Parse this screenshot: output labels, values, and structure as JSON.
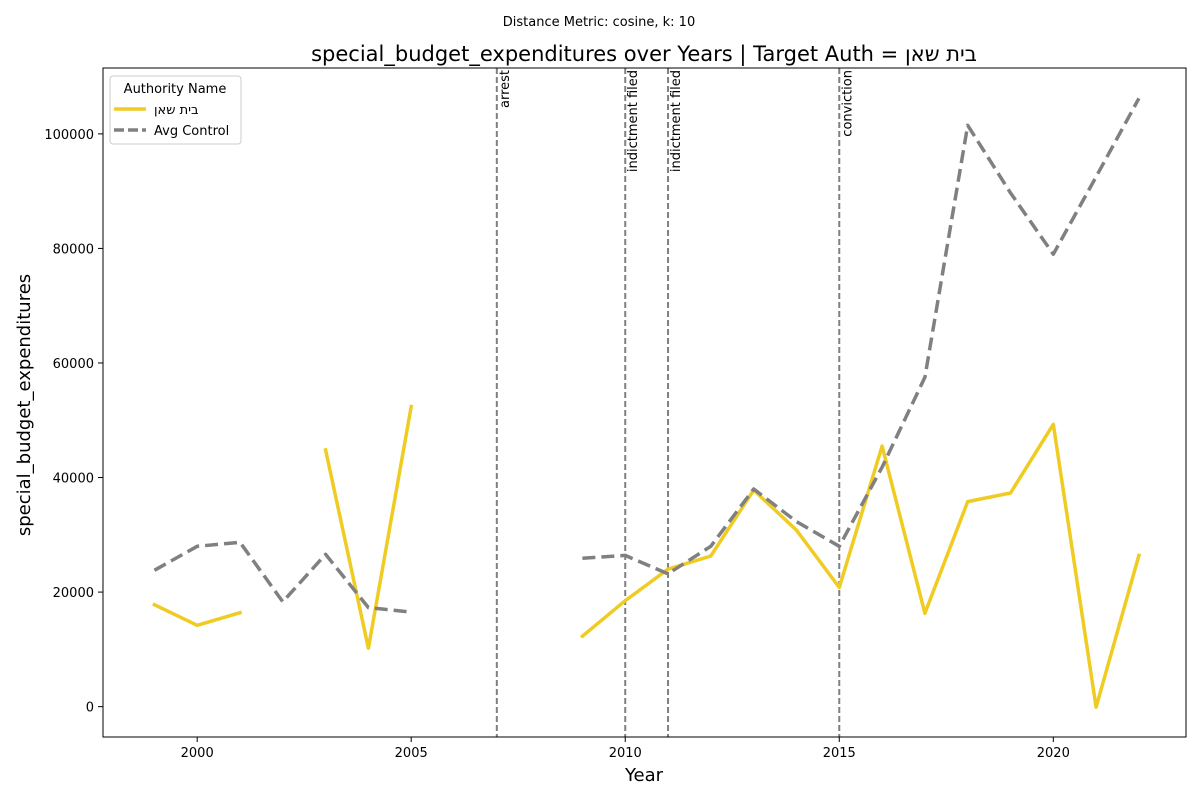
{
  "chart_data": {
    "type": "line",
    "subtitle": "Distance Metric: cosine, k: 10",
    "title": "special_budget_expenditures over Years | Target Auth = בית שאן",
    "xlabel": "Year",
    "ylabel": "special_budget_expenditures",
    "xlim": [
      1997.8,
      2023.1
    ],
    "ylim": [
      -5300,
      111500
    ],
    "x_ticks": [
      2000,
      2005,
      2010,
      2015,
      2020
    ],
    "y_ticks": [
      0,
      20000,
      40000,
      60000,
      80000,
      100000
    ],
    "grid": false,
    "legend": {
      "title": "Authority Name",
      "placement": "top-left",
      "entries": [
        "בית שאן",
        "Avg Control"
      ]
    },
    "series": [
      {
        "name": "בית שאן",
        "color": "#f0cc22",
        "style": "solid",
        "segments": [
          [
            [
              1999,
              17800
            ],
            [
              2000,
              14200
            ],
            [
              2001,
              16400
            ]
          ],
          [
            [
              2003,
              44800
            ],
            [
              2004,
              10200
            ],
            [
              2005,
              52400
            ]
          ],
          [
            [
              2009,
              12300
            ],
            [
              2010,
              18500
            ],
            [
              2011,
              24000
            ],
            [
              2012,
              26300
            ],
            [
              2013,
              37800
            ],
            [
              2014,
              30800
            ],
            [
              2015,
              20800
            ],
            [
              2016,
              45500
            ],
            [
              2017,
              16300
            ],
            [
              2018,
              35800
            ],
            [
              2019,
              37300
            ],
            [
              2020,
              49300
            ],
            [
              2021,
              -100
            ],
            [
              2022,
              26400
            ]
          ]
        ]
      },
      {
        "name": "Avg Control",
        "color": "#808080",
        "style": "dashed",
        "segments": [
          [
            [
              1999,
              23800
            ],
            [
              2000,
              28000
            ],
            [
              2001,
              28700
            ],
            [
              2002,
              18300
            ],
            [
              2003,
              26600
            ],
            [
              2004,
              17300
            ],
            [
              2005,
              16500
            ]
          ],
          [
            [
              2009,
              25900
            ],
            [
              2010,
              26400
            ],
            [
              2011,
              23200
            ],
            [
              2012,
              28000
            ],
            [
              2013,
              38000
            ],
            [
              2014,
              32300
            ],
            [
              2015,
              28000
            ],
            [
              2016,
              41800
            ],
            [
              2017,
              57500
            ],
            [
              2018,
              101500
            ],
            [
              2019,
              89700
            ],
            [
              2020,
              79000
            ],
            [
              2021,
              92500
            ],
            [
              2022,
              106200
            ]
          ]
        ]
      }
    ],
    "events": [
      {
        "year": 2007,
        "label": "arrest"
      },
      {
        "year": 2010,
        "label": "indictment filed"
      },
      {
        "year": 2011,
        "label": "indictment filed"
      },
      {
        "year": 2015,
        "label": "conviction"
      }
    ]
  }
}
